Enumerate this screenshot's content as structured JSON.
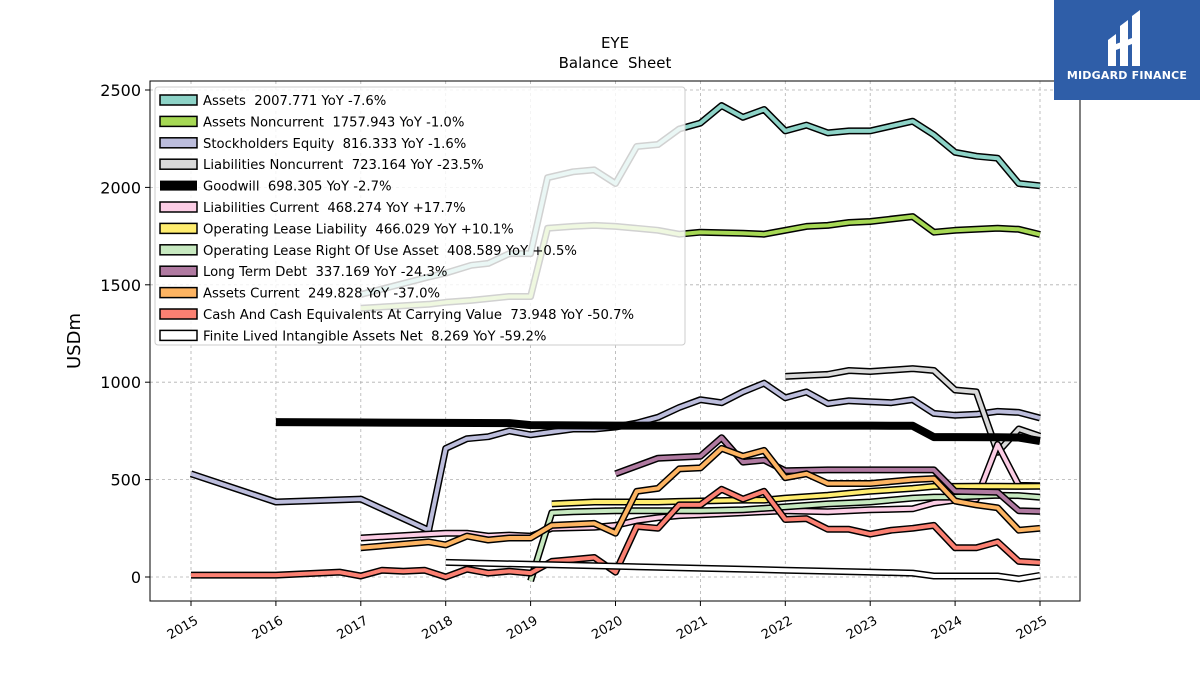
{
  "chart_data": {
    "type": "line",
    "title": "EYE",
    "subtitle": "Balance  Sheet",
    "xlabel": "",
    "ylabel": "USDm",
    "xlim": [
      2014.5,
      2025.5
    ],
    "ylim": [
      -120,
      2550
    ],
    "x_ticks": [
      "2015",
      "2016",
      "2017",
      "2018",
      "2019",
      "2020",
      "2021",
      "2022",
      "2023",
      "2024",
      "2025"
    ],
    "y_ticks": [
      0,
      500,
      1000,
      1500,
      2000,
      2500
    ],
    "grid": true,
    "legend_position": "top-left",
    "series": [
      {
        "name": "Assets  2007.771 YoY -7.6%",
        "color": "#8dd3c7",
        "lw": 4,
        "points": [
          [
            2017.0,
            1450
          ],
          [
            2017.8,
            1540
          ],
          [
            2018.0,
            1560
          ],
          [
            2018.3,
            1600
          ],
          [
            2018.5,
            1610
          ],
          [
            2018.75,
            1660
          ],
          [
            2019.0,
            1660
          ],
          [
            2019.2,
            2050
          ],
          [
            2019.5,
            2080
          ],
          [
            2019.75,
            2090
          ],
          [
            2020.0,
            2020
          ],
          [
            2020.25,
            2210
          ],
          [
            2020.5,
            2220
          ],
          [
            2020.75,
            2300
          ],
          [
            2021.0,
            2330
          ],
          [
            2021.25,
            2420
          ],
          [
            2021.5,
            2360
          ],
          [
            2021.75,
            2400
          ],
          [
            2022.0,
            2290
          ],
          [
            2022.25,
            2320
          ],
          [
            2022.5,
            2280
          ],
          [
            2022.75,
            2290
          ],
          [
            2023.0,
            2290
          ],
          [
            2023.5,
            2340
          ],
          [
            2023.75,
            2270
          ],
          [
            2024.0,
            2180
          ],
          [
            2024.25,
            2160
          ],
          [
            2024.5,
            2150
          ],
          [
            2024.75,
            2020
          ],
          [
            2025.0,
            2008
          ]
        ]
      },
      {
        "name": "Assets Noncurrent  1757.943 YoY -1.0%",
        "color": "#a6d854",
        "lw": 4,
        "points": [
          [
            2017.0,
            1380
          ],
          [
            2017.8,
            1400
          ],
          [
            2018.0,
            1410
          ],
          [
            2018.3,
            1420
          ],
          [
            2018.75,
            1440
          ],
          [
            2019.0,
            1440
          ],
          [
            2019.2,
            1790
          ],
          [
            2019.5,
            1800
          ],
          [
            2019.75,
            1805
          ],
          [
            2020.0,
            1800
          ],
          [
            2020.25,
            1790
          ],
          [
            2020.5,
            1780
          ],
          [
            2020.75,
            1760
          ],
          [
            2021.0,
            1770
          ],
          [
            2021.5,
            1765
          ],
          [
            2021.75,
            1760
          ],
          [
            2022.0,
            1780
          ],
          [
            2022.25,
            1800
          ],
          [
            2022.5,
            1805
          ],
          [
            2022.75,
            1820
          ],
          [
            2023.0,
            1825
          ],
          [
            2023.5,
            1850
          ],
          [
            2023.75,
            1770
          ],
          [
            2024.0,
            1780
          ],
          [
            2024.25,
            1785
          ],
          [
            2024.5,
            1790
          ],
          [
            2024.75,
            1785
          ],
          [
            2025.0,
            1758
          ]
        ]
      },
      {
        "name": "Stockholders Equity  816.333 YoY -1.6%",
        "color": "#bcbddc",
        "lw": 4,
        "points": [
          [
            2015.0,
            530
          ],
          [
            2016.0,
            385
          ],
          [
            2017.0,
            400
          ],
          [
            2017.8,
            240
          ],
          [
            2018.0,
            660
          ],
          [
            2018.25,
            710
          ],
          [
            2018.5,
            720
          ],
          [
            2018.75,
            750
          ],
          [
            2019.0,
            730
          ],
          [
            2019.5,
            760
          ],
          [
            2019.75,
            760
          ],
          [
            2020.0,
            770
          ],
          [
            2020.25,
            790
          ],
          [
            2020.5,
            820
          ],
          [
            2020.75,
            870
          ],
          [
            2021.0,
            910
          ],
          [
            2021.25,
            895
          ],
          [
            2021.5,
            950
          ],
          [
            2021.75,
            995
          ],
          [
            2022.0,
            920
          ],
          [
            2022.25,
            950
          ],
          [
            2022.5,
            890
          ],
          [
            2022.75,
            905
          ],
          [
            2023.0,
            900
          ],
          [
            2023.25,
            895
          ],
          [
            2023.5,
            910
          ],
          [
            2023.75,
            840
          ],
          [
            2024.0,
            830
          ],
          [
            2024.25,
            835
          ],
          [
            2024.5,
            850
          ],
          [
            2024.75,
            845
          ],
          [
            2025.0,
            816
          ]
        ]
      },
      {
        "name": "Liabilities Noncurrent  723.164 YoY -23.5%",
        "color": "#d9d9d9",
        "lw": 4,
        "points": [
          [
            2022.0,
            1030
          ],
          [
            2022.5,
            1040
          ],
          [
            2022.75,
            1060
          ],
          [
            2023.0,
            1055
          ],
          [
            2023.5,
            1070
          ],
          [
            2023.75,
            1060
          ],
          [
            2024.0,
            960
          ],
          [
            2024.25,
            950
          ],
          [
            2024.5,
            640
          ],
          [
            2024.75,
            760
          ],
          [
            2025.0,
            723
          ]
        ]
      },
      {
        "name": "Goodwill  698.305 YoY -2.7%",
        "color": "#000000",
        "lw": 8,
        "points": [
          [
            2016.0,
            795
          ],
          [
            2017.0,
            793
          ],
          [
            2018.0,
            791
          ],
          [
            2018.75,
            790
          ],
          [
            2019.0,
            780
          ],
          [
            2019.5,
            778
          ],
          [
            2020.0,
            777
          ],
          [
            2021.0,
            777
          ],
          [
            2022.0,
            777
          ],
          [
            2023.0,
            777
          ],
          [
            2023.5,
            776
          ],
          [
            2023.75,
            718
          ],
          [
            2024.0,
            718
          ],
          [
            2024.5,
            717
          ],
          [
            2024.75,
            716
          ],
          [
            2025.0,
            698
          ]
        ]
      },
      {
        "name": "Liabilities Current  468.274 YoY +17.7%",
        "color": "#fccde5",
        "lw": 4,
        "points": [
          [
            2017.0,
            200
          ],
          [
            2017.8,
            220
          ],
          [
            2018.0,
            225
          ],
          [
            2018.25,
            225
          ],
          [
            2018.5,
            210
          ],
          [
            2018.75,
            215
          ],
          [
            2019.0,
            210
          ],
          [
            2019.25,
            250
          ],
          [
            2019.75,
            255
          ],
          [
            2020.0,
            265
          ],
          [
            2020.25,
            290
          ],
          [
            2020.5,
            305
          ],
          [
            2020.75,
            315
          ],
          [
            2021.0,
            320
          ],
          [
            2021.5,
            330
          ],
          [
            2021.75,
            335
          ],
          [
            2022.0,
            340
          ],
          [
            2022.5,
            335
          ],
          [
            2022.75,
            340
          ],
          [
            2023.0,
            345
          ],
          [
            2023.5,
            350
          ],
          [
            2023.75,
            380
          ],
          [
            2024.0,
            395
          ],
          [
            2024.25,
            400
          ],
          [
            2024.5,
            680
          ],
          [
            2024.75,
            470
          ],
          [
            2025.0,
            468
          ]
        ]
      },
      {
        "name": "Operating Lease Liability  466.029 YoY +10.1%",
        "color": "#ffed6f",
        "lw": 4,
        "points": [
          [
            2019.25,
            375
          ],
          [
            2019.75,
            385
          ],
          [
            2020.0,
            385
          ],
          [
            2020.5,
            385
          ],
          [
            2020.75,
            388
          ],
          [
            2021.0,
            390
          ],
          [
            2021.5,
            395
          ],
          [
            2021.75,
            395
          ],
          [
            2022.0,
            405
          ],
          [
            2022.5,
            420
          ],
          [
            2022.75,
            430
          ],
          [
            2023.0,
            440
          ],
          [
            2023.5,
            455
          ],
          [
            2023.75,
            465
          ],
          [
            2024.0,
            465
          ],
          [
            2024.25,
            466
          ],
          [
            2024.5,
            466
          ],
          [
            2024.75,
            465
          ],
          [
            2025.0,
            466
          ]
        ]
      },
      {
        "name": "Operating Lease Right Of Use Asset  408.589 YoY +0.5%",
        "color": "#c7e9c0",
        "lw": 4,
        "points": [
          [
            2019.0,
            -20
          ],
          [
            2019.25,
            330
          ],
          [
            2019.5,
            335
          ],
          [
            2020.0,
            340
          ],
          [
            2020.5,
            340
          ],
          [
            2021.0,
            340
          ],
          [
            2021.5,
            345
          ],
          [
            2022.0,
            360
          ],
          [
            2022.5,
            375
          ],
          [
            2022.75,
            380
          ],
          [
            2023.0,
            385
          ],
          [
            2023.5,
            405
          ],
          [
            2023.75,
            410
          ],
          [
            2024.0,
            410
          ],
          [
            2024.5,
            420
          ],
          [
            2024.75,
            418
          ],
          [
            2025.0,
            409
          ]
        ]
      },
      {
        "name": "Long Term Debt  337.169 YoY -24.3%",
        "color": "#b07aa1",
        "lw": 4,
        "points": [
          [
            2020.0,
            530
          ],
          [
            2020.5,
            610
          ],
          [
            2020.75,
            615
          ],
          [
            2021.0,
            620
          ],
          [
            2021.25,
            715
          ],
          [
            2021.5,
            590
          ],
          [
            2021.75,
            600
          ],
          [
            2022.0,
            545
          ],
          [
            2022.5,
            550
          ],
          [
            2023.0,
            550
          ],
          [
            2023.75,
            550
          ],
          [
            2024.0,
            440
          ],
          [
            2024.25,
            438
          ],
          [
            2024.5,
            435
          ],
          [
            2024.75,
            340
          ],
          [
            2025.0,
            337
          ]
        ]
      },
      {
        "name": "Assets Current  249.828 YoY -37.0%",
        "color": "#fdb462",
        "lw": 4,
        "points": [
          [
            2017.0,
            150
          ],
          [
            2017.8,
            180
          ],
          [
            2018.0,
            165
          ],
          [
            2018.25,
            210
          ],
          [
            2018.5,
            190
          ],
          [
            2018.75,
            200
          ],
          [
            2019.0,
            200
          ],
          [
            2019.25,
            265
          ],
          [
            2019.5,
            270
          ],
          [
            2019.75,
            275
          ],
          [
            2020.0,
            225
          ],
          [
            2020.25,
            440
          ],
          [
            2020.5,
            455
          ],
          [
            2020.75,
            555
          ],
          [
            2021.0,
            560
          ],
          [
            2021.25,
            660
          ],
          [
            2021.5,
            620
          ],
          [
            2021.75,
            650
          ],
          [
            2022.0,
            510
          ],
          [
            2022.25,
            530
          ],
          [
            2022.5,
            480
          ],
          [
            2022.75,
            480
          ],
          [
            2023.0,
            480
          ],
          [
            2023.5,
            500
          ],
          [
            2023.75,
            505
          ],
          [
            2024.0,
            390
          ],
          [
            2024.25,
            370
          ],
          [
            2024.5,
            355
          ],
          [
            2024.75,
            240
          ],
          [
            2025.0,
            250
          ]
        ]
      },
      {
        "name": "Cash And Cash Equivalents At Carrying Value  73.948 YoY -50.7%",
        "color": "#fb8072",
        "lw": 4,
        "points": [
          [
            2015.0,
            10
          ],
          [
            2016.0,
            10
          ],
          [
            2016.75,
            25
          ],
          [
            2017.0,
            5
          ],
          [
            2017.25,
            35
          ],
          [
            2017.5,
            30
          ],
          [
            2017.75,
            35
          ],
          [
            2018.0,
            0
          ],
          [
            2018.25,
            40
          ],
          [
            2018.5,
            20
          ],
          [
            2018.75,
            30
          ],
          [
            2019.0,
            20
          ],
          [
            2019.25,
            80
          ],
          [
            2019.5,
            90
          ],
          [
            2019.75,
            100
          ],
          [
            2020.0,
            25
          ],
          [
            2020.25,
            260
          ],
          [
            2020.5,
            250
          ],
          [
            2020.75,
            370
          ],
          [
            2021.0,
            370
          ],
          [
            2021.25,
            450
          ],
          [
            2021.5,
            400
          ],
          [
            2021.75,
            440
          ],
          [
            2022.0,
            295
          ],
          [
            2022.25,
            300
          ],
          [
            2022.5,
            245
          ],
          [
            2022.75,
            245
          ],
          [
            2023.0,
            220
          ],
          [
            2023.25,
            240
          ],
          [
            2023.5,
            250
          ],
          [
            2023.75,
            265
          ],
          [
            2024.0,
            150
          ],
          [
            2024.25,
            150
          ],
          [
            2024.5,
            180
          ],
          [
            2024.75,
            80
          ],
          [
            2025.0,
            74
          ]
        ]
      },
      {
        "name": "Finite Lived Intangible Assets Net  8.269 YoY -59.2%",
        "color": "#ffffff",
        "lw": 4,
        "points": [
          [
            2018.0,
            75
          ],
          [
            2019.0,
            65
          ],
          [
            2020.0,
            55
          ],
          [
            2021.0,
            45
          ],
          [
            2022.0,
            35
          ],
          [
            2023.0,
            25
          ],
          [
            2023.5,
            20
          ],
          [
            2023.75,
            5
          ],
          [
            2024.0,
            5
          ],
          [
            2024.5,
            5
          ],
          [
            2024.75,
            -10
          ],
          [
            2025.0,
            8
          ]
        ]
      }
    ]
  },
  "logo": {
    "text": "MIDGARD FINANCE",
    "bg": "#2f5ea8"
  }
}
